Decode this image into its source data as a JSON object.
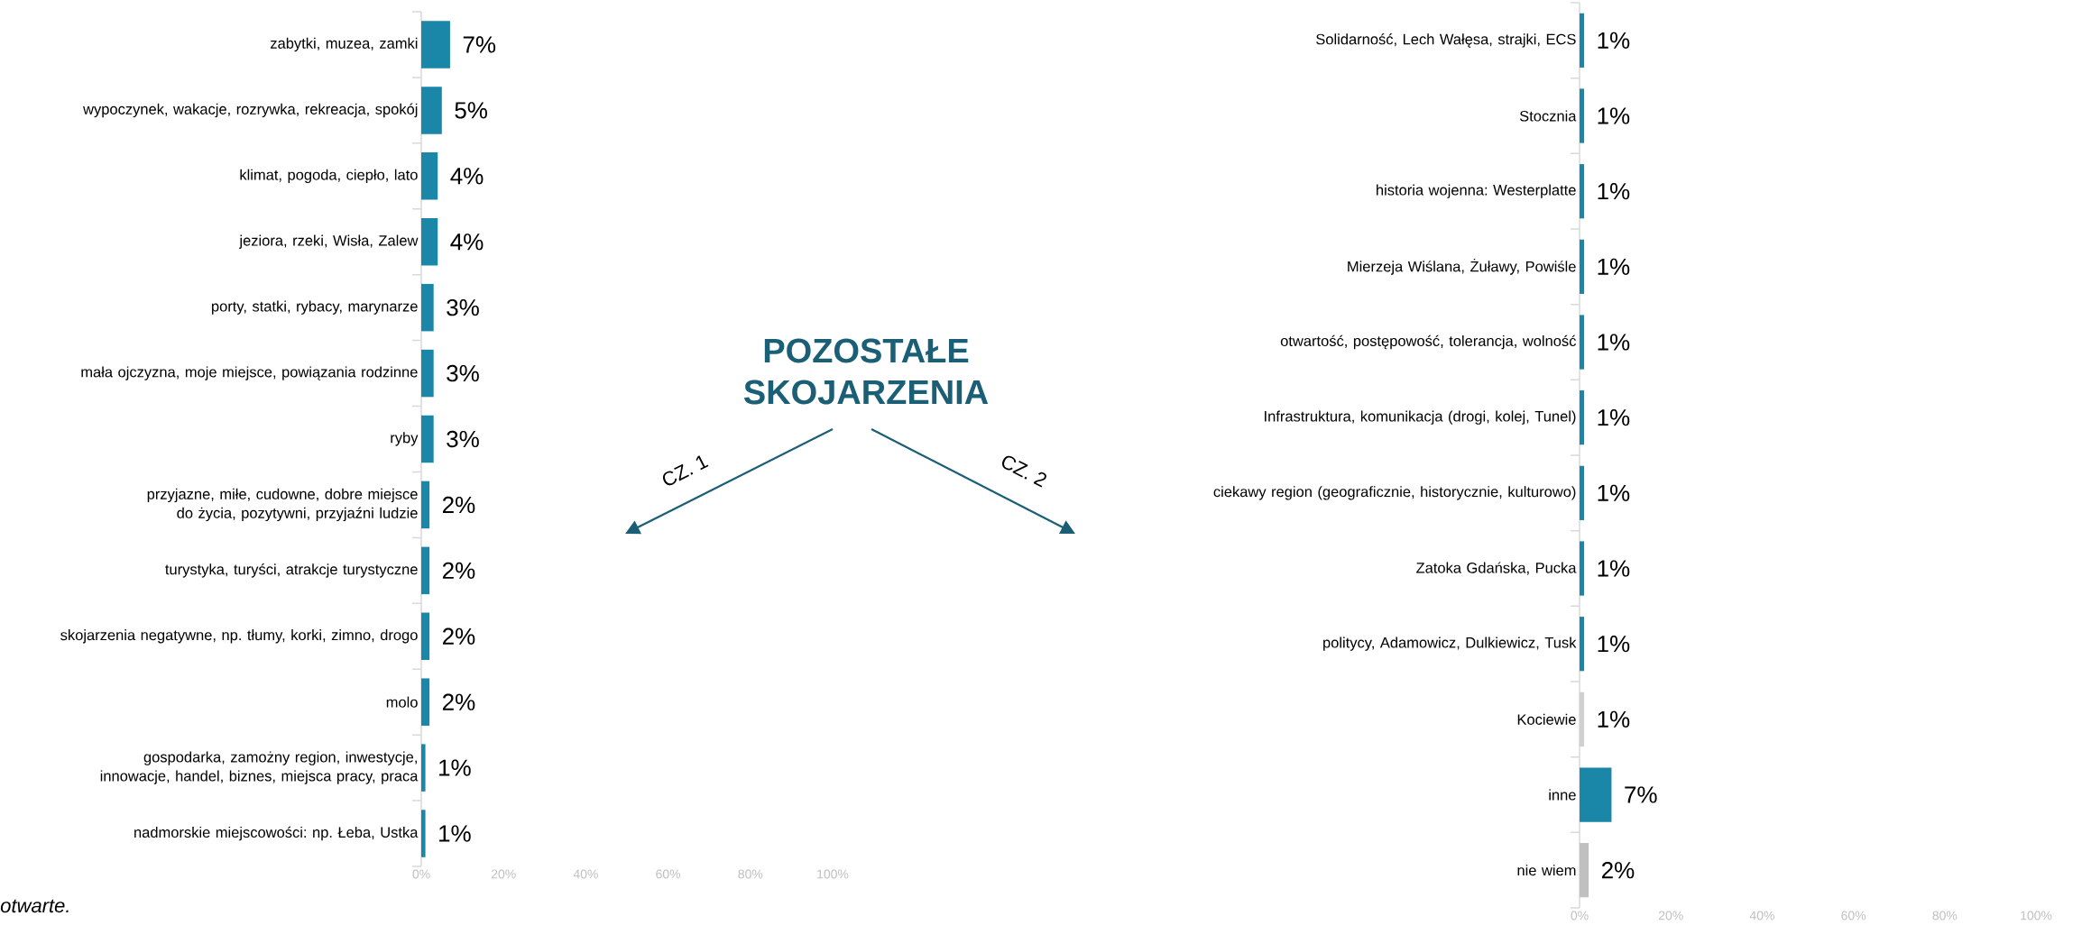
{
  "chart_data": [
    {
      "type": "bar",
      "orientation": "horizontal",
      "categories": [
        "zabytki, muzea, zamki",
        "wypoczynek, wakacje, rozrywka, rekreacja, spokój",
        "klimat, pogoda, ciepło, lato",
        "jeziora, rzeki, Wisła, Zalew",
        "porty, statki, rybacy, marynarze",
        "mała ojczyzna, moje miejsce, powiązania rodzinne",
        "ryby",
        "przyjazne, miłe, cudowne, dobre miejsce do życia, pozytywni, przyjaźni ludzie",
        "turystyka, turyści, atrakcje turystyczne",
        "skojarzenia negatywne, np. tłumy, korki, zimno, drogo",
        "molo",
        "gospodarka, zamożny region, inwestycje, innowacje, handel, biznes, miejsca pracy, praca",
        "nadmorskie miejscowości: np. Łeba, Ustka"
      ],
      "values": [
        7,
        5,
        4,
        4,
        3,
        3,
        3,
        2,
        2,
        2,
        2,
        1,
        1
      ],
      "value_labels": [
        "7%",
        "5%",
        "4%",
        "4%",
        "3%",
        "3%",
        "3%",
        "2%",
        "2%",
        "2%",
        "2%",
        "1%",
        "1%"
      ],
      "colors": [
        "#1a87a8",
        "#1a87a8",
        "#1a87a8",
        "#1a87a8",
        "#1a87a8",
        "#1a87a8",
        "#1a87a8",
        "#1a87a8",
        "#1a87a8",
        "#1a87a8",
        "#1a87a8",
        "#1a87a8",
        "#1a87a8"
      ],
      "xlim": [
        0,
        100
      ],
      "xticks": [
        {
          "value": 0,
          "label": "0%"
        },
        {
          "value": 20,
          "label": "20%"
        },
        {
          "value": 40,
          "label": "40%"
        },
        {
          "value": 60,
          "label": "60%"
        },
        {
          "value": 80,
          "label": "80%"
        },
        {
          "value": 100,
          "label": "100%"
        }
      ],
      "annotations": [
        "otwarte."
      ]
    },
    {
      "type": "other",
      "title": "POZOSTAŁE SKOJARZENIA",
      "annotations": [
        "CZ. 1",
        "CZ. 2"
      ]
    },
    {
      "type": "bar",
      "orientation": "horizontal",
      "categories": [
        "Solidarność, Lech Wałęsa, strajki, ECS",
        "Stocznia",
        "historia wojenna: Westerplatte",
        "Mierzeja Wiślana, Żuławy, Powiśle",
        "otwartość, postępowość, tolerancja, wolność",
        "Infrastruktura, komunikacja (drogi, kolej, Tunel)",
        "ciekawy region (geograficznie, historycznie, kulturowo)",
        "Zatoka Gdańska, Pucka",
        "politycy, Adamowicz, Dulkiewicz, Tusk",
        "Kociewie",
        "inne",
        "nie wiem"
      ],
      "values": [
        1,
        1,
        1,
        1,
        1,
        1,
        1,
        1,
        1,
        1,
        7,
        2
      ],
      "value_labels": [
        "1%",
        "1%",
        "1%",
        "1%",
        "1%",
        "1%",
        "1%",
        "1%",
        "1%",
        "1%",
        "7%",
        "2%"
      ],
      "colors": [
        "#1a87a8",
        "#1a87a8",
        "#1a87a8",
        "#1a87a8",
        "#1a87a8",
        "#1a87a8",
        "#1a87a8",
        "#1a87a8",
        "#1a87a8",
        "#d0d0d0",
        "#1a87a8",
        "#c0c0c0"
      ],
      "xlim": [
        0,
        100
      ],
      "xticks": [
        {
          "value": 0,
          "label": "0%"
        },
        {
          "value": 20,
          "label": "20%"
        },
        {
          "value": 40,
          "label": "40%"
        },
        {
          "value": 60,
          "label": "60%"
        },
        {
          "value": 80,
          "label": "80%"
        },
        {
          "value": 100,
          "label": "100%"
        }
      ]
    }
  ]
}
